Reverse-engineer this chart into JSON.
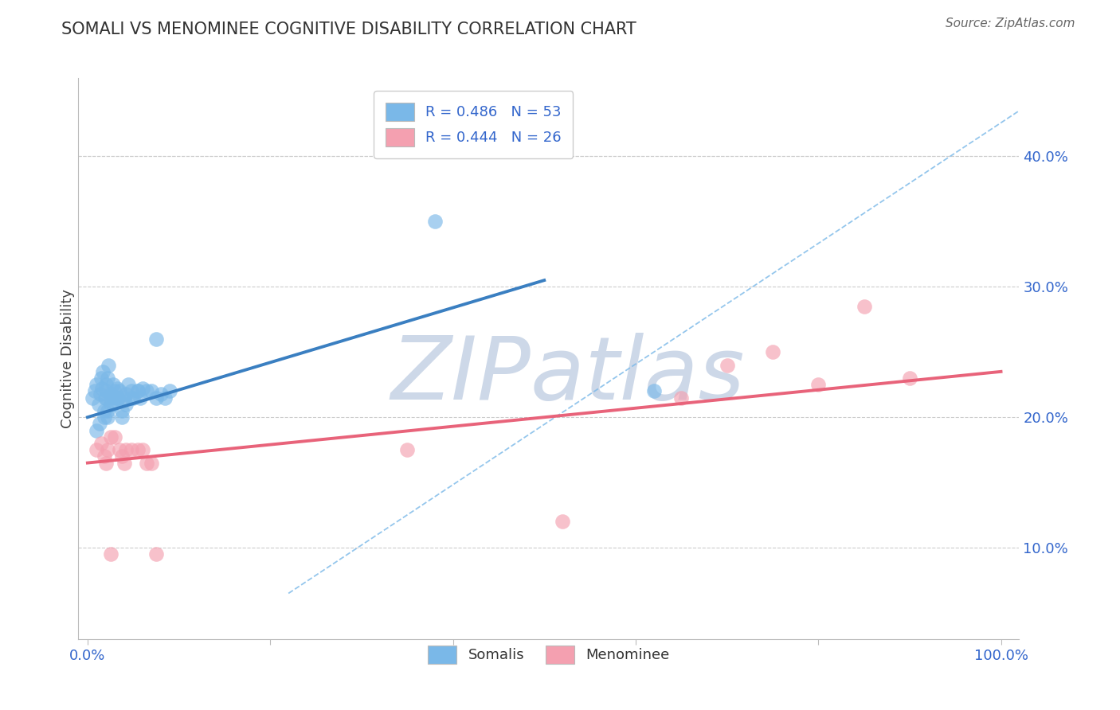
{
  "title": "SOMALI VS MENOMINEE COGNITIVE DISABILITY CORRELATION CHART",
  "source": "Source: ZipAtlas.com",
  "ylabel": "Cognitive Disability",
  "xlim": [
    -0.01,
    1.02
  ],
  "ylim": [
    0.03,
    0.46
  ],
  "xticks": [
    0.0,
    0.2,
    0.4,
    0.6,
    0.8,
    1.0
  ],
  "xtick_labels": [
    "0.0%",
    "",
    "",
    "",
    "",
    "100.0%"
  ],
  "yticks": [
    0.1,
    0.2,
    0.3,
    0.4
  ],
  "ytick_labels": [
    "10.0%",
    "20.0%",
    "30.0%",
    "40.0%"
  ],
  "somali_scatter_x": [
    0.005,
    0.008,
    0.01,
    0.012,
    0.014,
    0.015,
    0.016,
    0.017,
    0.018,
    0.019,
    0.02,
    0.02,
    0.02,
    0.022,
    0.022,
    0.023,
    0.025,
    0.025,
    0.026,
    0.028,
    0.03,
    0.03,
    0.032,
    0.033,
    0.035,
    0.038,
    0.04,
    0.042,
    0.045,
    0.048,
    0.05,
    0.055,
    0.058,
    0.06,
    0.065,
    0.07,
    0.075,
    0.08,
    0.085,
    0.09,
    0.01,
    0.013,
    0.018,
    0.022,
    0.028,
    0.033,
    0.038,
    0.042,
    0.048,
    0.055,
    0.38,
    0.62,
    0.075
  ],
  "somali_scatter_y": [
    0.215,
    0.22,
    0.225,
    0.21,
    0.218,
    0.23,
    0.222,
    0.235,
    0.205,
    0.215,
    0.215,
    0.22,
    0.225,
    0.23,
    0.2,
    0.24,
    0.21,
    0.215,
    0.218,
    0.225,
    0.215,
    0.22,
    0.222,
    0.215,
    0.22,
    0.2,
    0.215,
    0.218,
    0.225,
    0.22,
    0.215,
    0.22,
    0.215,
    0.222,
    0.22,
    0.22,
    0.215,
    0.218,
    0.215,
    0.22,
    0.19,
    0.195,
    0.2,
    0.205,
    0.21,
    0.215,
    0.205,
    0.21,
    0.215,
    0.22,
    0.35,
    0.22,
    0.26
  ],
  "menominee_scatter_x": [
    0.01,
    0.015,
    0.018,
    0.02,
    0.022,
    0.025,
    0.03,
    0.035,
    0.038,
    0.04,
    0.042,
    0.048,
    0.055,
    0.06,
    0.065,
    0.07,
    0.075,
    0.35,
    0.52,
    0.65,
    0.7,
    0.75,
    0.8,
    0.85,
    0.9,
    0.025
  ],
  "menominee_scatter_y": [
    0.175,
    0.18,
    0.17,
    0.165,
    0.175,
    0.185,
    0.185,
    0.175,
    0.17,
    0.165,
    0.175,
    0.175,
    0.175,
    0.175,
    0.165,
    0.165,
    0.095,
    0.175,
    0.12,
    0.215,
    0.24,
    0.25,
    0.225,
    0.285,
    0.23,
    0.095
  ],
  "somali_line_x": [
    0.0,
    0.5
  ],
  "somali_line_y": [
    0.2,
    0.305
  ],
  "menominee_line_x": [
    0.0,
    1.0
  ],
  "menominee_line_y": [
    0.165,
    0.235
  ],
  "diag_line_x": [
    0.22,
    1.02
  ],
  "diag_line_y": [
    0.065,
    0.435
  ],
  "blue_color": "#3a7fc1",
  "pink_color": "#e8637a",
  "scatter_blue": "#7ab8e8",
  "scatter_pink": "#f4a0b0",
  "watermark": "ZIPatlas",
  "watermark_color": "#cdd8e8",
  "grid_color": "#cccccc",
  "title_color": "#333333",
  "source_color": "#666666",
  "tick_color": "#3366cc",
  "ylabel_color": "#444444"
}
